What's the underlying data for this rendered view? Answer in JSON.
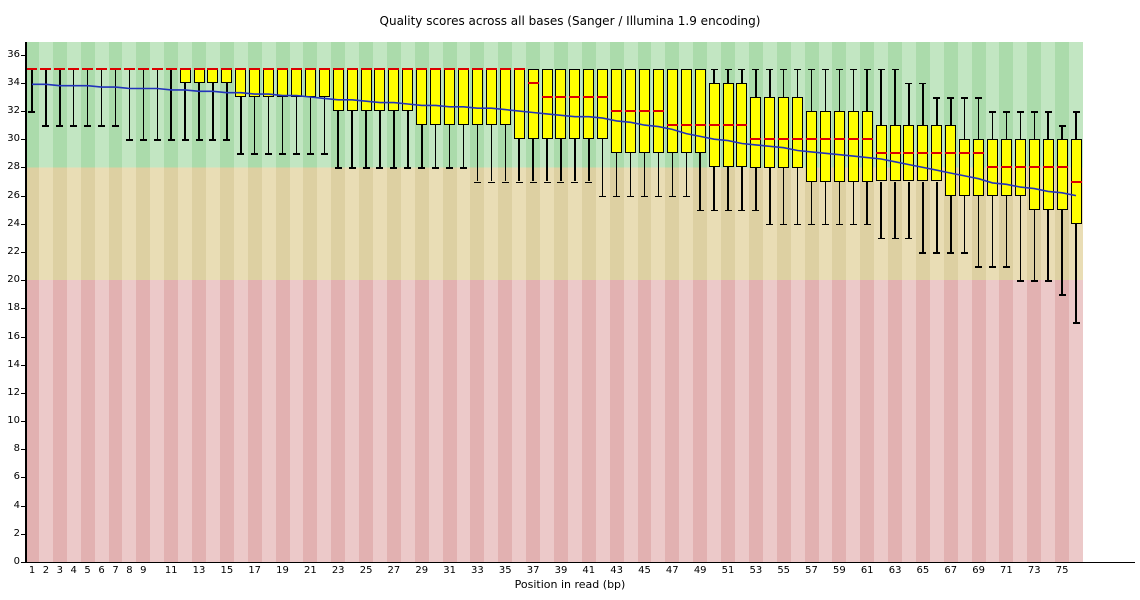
{
  "title": "Quality scores across all bases (Sanger / Illumina 1.9 encoding)",
  "xlabel": "Position in read (bp)",
  "chart_data": {
    "type": "boxplot",
    "title": "Quality scores across all bases (Sanger / Illumina 1.9 encoding)",
    "xlabel": "Position in read (bp)",
    "ylim": [
      0,
      36.9
    ],
    "y_ticks": [
      0,
      2,
      4,
      6,
      8,
      10,
      12,
      14,
      16,
      18,
      20,
      22,
      24,
      26,
      28,
      30,
      32,
      34,
      36
    ],
    "x_ticks": [
      1,
      2,
      3,
      4,
      5,
      6,
      7,
      8,
      9,
      11,
      13,
      15,
      17,
      19,
      21,
      23,
      25,
      27,
      29,
      31,
      33,
      35,
      37,
      39,
      41,
      43,
      45,
      47,
      49,
      51,
      53,
      55,
      57,
      59,
      61,
      63,
      65,
      67,
      69,
      71,
      73,
      75
    ],
    "n_positions": 76,
    "grid": false,
    "legend": "none",
    "zones": [
      {
        "name": "bad",
        "min": 0,
        "max": 20,
        "dark": "#e2b1b1",
        "light": "#ecc9c9"
      },
      {
        "name": "medium",
        "min": 20,
        "max": 28,
        "dark": "#ddd0a2",
        "light": "#e9ddb5"
      },
      {
        "name": "good",
        "min": 28,
        "max": 36.9,
        "dark": "#abdbab",
        "light": "#c2e6c2"
      }
    ],
    "colors": {
      "box_fill": "#ffff00",
      "box_border": "#000000",
      "median": "#dd0000",
      "mean": "#2233bb",
      "whisker": "#000000"
    },
    "columns": [
      "position",
      "median",
      "q1",
      "q3",
      "whisker_low",
      "whisker_high",
      "mean"
    ],
    "positions": [
      [
        1,
        35,
        35,
        35,
        32,
        35,
        33.9
      ],
      [
        2,
        35,
        35,
        35,
        31,
        35,
        33.9
      ],
      [
        3,
        35,
        35,
        35,
        31,
        35,
        33.8
      ],
      [
        4,
        35,
        35,
        35,
        31,
        35,
        33.8
      ],
      [
        5,
        35,
        35,
        35,
        31,
        35,
        33.8
      ],
      [
        6,
        35,
        35,
        35,
        31,
        35,
        33.7
      ],
      [
        7,
        35,
        35,
        35,
        31,
        35,
        33.7
      ],
      [
        8,
        35,
        35,
        35,
        30,
        35,
        33.6
      ],
      [
        9,
        35,
        35,
        35,
        30,
        35,
        33.6
      ],
      [
        10,
        35,
        35,
        35,
        30,
        35,
        33.6
      ],
      [
        11,
        35,
        35,
        35,
        30,
        35,
        33.5
      ],
      [
        12,
        35,
        34,
        35,
        30,
        35,
        33.5
      ],
      [
        13,
        35,
        34,
        35,
        30,
        35,
        33.4
      ],
      [
        14,
        35,
        34,
        35,
        30,
        35,
        33.4
      ],
      [
        15,
        35,
        34,
        35,
        30,
        35,
        33.3
      ],
      [
        16,
        35,
        33,
        35,
        29,
        35,
        33.3
      ],
      [
        17,
        35,
        33,
        35,
        29,
        35,
        33.2
      ],
      [
        18,
        35,
        33,
        35,
        29,
        35,
        33.2
      ],
      [
        19,
        35,
        33,
        35,
        29,
        35,
        33.1
      ],
      [
        20,
        35,
        33,
        35,
        29,
        35,
        33.1
      ],
      [
        21,
        35,
        33,
        35,
        29,
        35,
        33.0
      ],
      [
        22,
        35,
        33,
        35,
        29,
        35,
        32.9
      ],
      [
        23,
        35,
        32,
        35,
        28,
        35,
        32.8
      ],
      [
        24,
        35,
        32,
        35,
        28,
        35,
        32.8
      ],
      [
        25,
        35,
        32,
        35,
        28,
        35,
        32.7
      ],
      [
        26,
        35,
        32,
        35,
        28,
        35,
        32.6
      ],
      [
        27,
        35,
        32,
        35,
        28,
        35,
        32.6
      ],
      [
        28,
        35,
        32,
        35,
        28,
        35,
        32.5
      ],
      [
        29,
        35,
        31,
        35,
        28,
        35,
        32.4
      ],
      [
        30,
        35,
        31,
        35,
        28,
        35,
        32.4
      ],
      [
        31,
        35,
        31,
        35,
        28,
        35,
        32.3
      ],
      [
        32,
        35,
        31,
        35,
        28,
        35,
        32.3
      ],
      [
        33,
        35,
        31,
        35,
        27,
        35,
        32.2
      ],
      [
        34,
        35,
        31,
        35,
        27,
        35,
        32.2
      ],
      [
        35,
        35,
        31,
        35,
        27,
        35,
        32.1
      ],
      [
        36,
        35,
        30,
        35,
        27,
        35,
        32.0
      ],
      [
        37,
        34,
        30,
        35,
        27,
        35,
        31.9
      ],
      [
        38,
        33,
        30,
        35,
        27,
        35,
        31.8
      ],
      [
        39,
        33,
        30,
        35,
        27,
        35,
        31.7
      ],
      [
        40,
        33,
        30,
        35,
        27,
        35,
        31.6
      ],
      [
        41,
        33,
        30,
        35,
        27,
        35,
        31.6
      ],
      [
        42,
        33,
        30,
        35,
        26,
        35,
        31.5
      ],
      [
        43,
        32,
        29,
        35,
        26,
        35,
        31.3
      ],
      [
        44,
        32,
        29,
        35,
        26,
        35,
        31.2
      ],
      [
        45,
        32,
        29,
        35,
        26,
        35,
        31.0
      ],
      [
        46,
        32,
        29,
        35,
        26,
        35,
        30.9
      ],
      [
        47,
        31,
        29,
        35,
        26,
        35,
        30.7
      ],
      [
        48,
        31,
        29,
        35,
        26,
        35,
        30.4
      ],
      [
        49,
        31,
        29,
        35,
        25,
        35,
        30.2
      ],
      [
        50,
        31,
        28,
        34,
        25,
        35,
        30.0
      ],
      [
        51,
        31,
        28,
        34,
        25,
        35,
        29.9
      ],
      [
        52,
        31,
        28,
        34,
        25,
        35,
        29.7
      ],
      [
        53,
        30,
        28,
        33,
        25,
        35,
        29.6
      ],
      [
        54,
        30,
        28,
        33,
        24,
        35,
        29.5
      ],
      [
        55,
        30,
        28,
        33,
        24,
        35,
        29.4
      ],
      [
        56,
        30,
        28,
        33,
        24,
        35,
        29.2
      ],
      [
        57,
        30,
        27,
        32,
        24,
        35,
        29.1
      ],
      [
        58,
        30,
        27,
        32,
        24,
        35,
        29.0
      ],
      [
        59,
        30,
        27,
        32,
        24,
        35,
        28.9
      ],
      [
        60,
        30,
        27,
        32,
        24,
        35,
        28.8
      ],
      [
        61,
        30,
        27,
        32,
        24,
        35,
        28.7
      ],
      [
        62,
        29,
        27,
        31,
        23,
        35,
        28.6
      ],
      [
        63,
        29,
        27,
        31,
        23,
        35,
        28.4
      ],
      [
        64,
        29,
        27,
        31,
        23,
        34,
        28.2
      ],
      [
        65,
        29,
        27,
        31,
        22,
        34,
        28.0
      ],
      [
        66,
        29,
        27,
        31,
        22,
        33,
        27.8
      ],
      [
        67,
        29,
        26,
        31,
        22,
        33,
        27.6
      ],
      [
        68,
        29,
        26,
        30,
        22,
        33,
        27.4
      ],
      [
        69,
        29,
        26,
        30,
        21,
        33,
        27.2
      ],
      [
        70,
        28,
        26,
        30,
        21,
        32,
        26.9
      ],
      [
        71,
        28,
        26,
        30,
        21,
        32,
        26.8
      ],
      [
        72,
        28,
        26,
        30,
        20,
        32,
        26.6
      ],
      [
        73,
        28,
        25,
        30,
        20,
        32,
        26.5
      ],
      [
        74,
        28,
        25,
        30,
        20,
        32,
        26.3
      ],
      [
        75,
        28,
        25,
        30,
        19,
        31,
        26.2
      ],
      [
        76,
        27,
        24,
        30,
        17,
        32,
        26.0
      ]
    ]
  }
}
